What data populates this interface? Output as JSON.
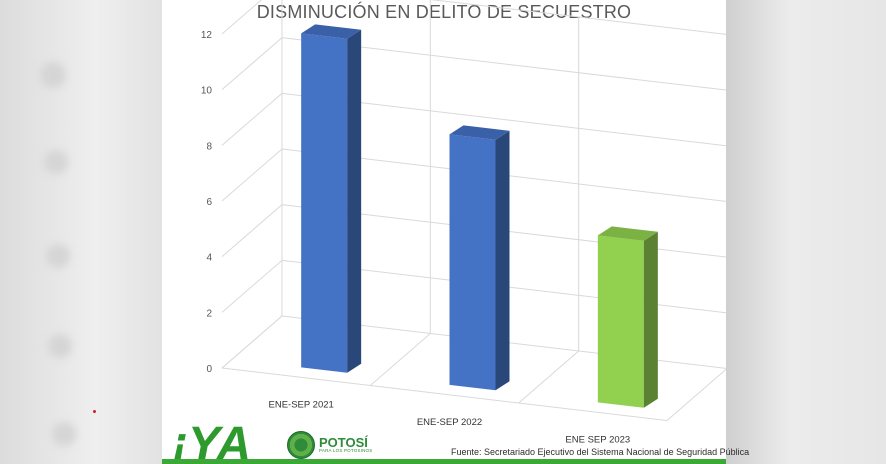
{
  "chart_data": {
    "type": "bar",
    "title": "DISMINUCIÓN EN DELITO DE SECUESTRO",
    "categories": [
      "ENE-SEP 2021",
      "ENE-SEP 2022",
      "ENE SEP 2023"
    ],
    "values": [
      12,
      9,
      6
    ],
    "ylim": [
      0,
      12
    ],
    "yticks": [
      0,
      2,
      4,
      6,
      8,
      10,
      12
    ],
    "grid": true,
    "colors": [
      "#4472c4",
      "#4472c4",
      "#92d050"
    ],
    "style": "3d-column"
  },
  "branding": {
    "logo_iya": "¡YA",
    "logo_potosi": "POTOSÍ",
    "logo_potosi_sub": "PARA LOS POTOSINOS",
    "source": "Fuente: Secretariado Ejecutivo del Sistema Nacional de Seguridad Pública"
  }
}
